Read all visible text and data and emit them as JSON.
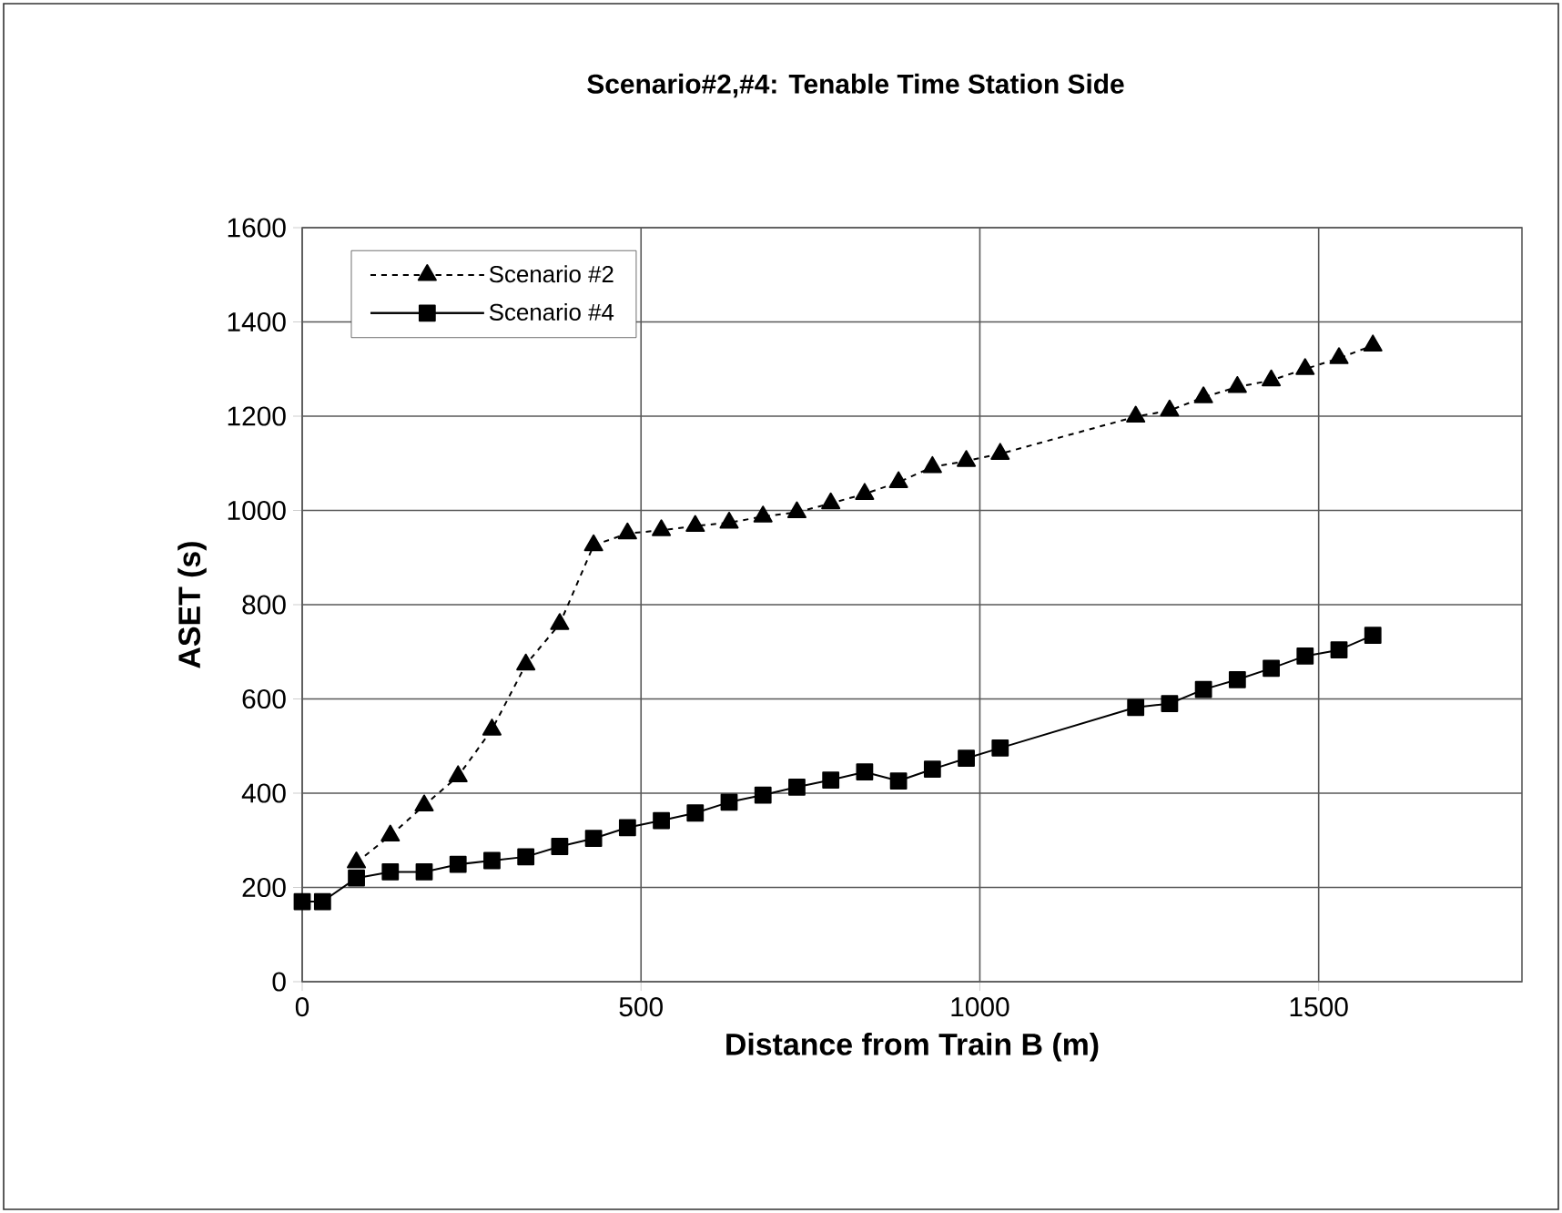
{
  "chart_data": {
    "type": "line",
    "title": "Scenario#2,#4: Tenable Time Station Side",
    "xlabel": "Distance from Train B (m)",
    "ylabel": "ASET (s)",
    "x": [
      0,
      30,
      80,
      130,
      180,
      230,
      280,
      330,
      380,
      430,
      480,
      530,
      580,
      630,
      680,
      730,
      780,
      830,
      880,
      930,
      980,
      1030,
      1230,
      1280,
      1330,
      1380,
      1430,
      1480,
      1530,
      1580
    ],
    "series": [
      {
        "name": "Scenario #2",
        "color": "#000000",
        "marker": "triangle",
        "line_style": "dashed",
        "values": [
          null,
          null,
          253,
          310,
          374,
          436,
          535,
          673,
          759,
          926,
          951,
          958,
          967,
          974,
          987,
          996,
          1015,
          1035,
          1060,
          1092,
          1105,
          1120,
          1199,
          1212,
          1240,
          1262,
          1276,
          1300,
          1323,
          1350
        ]
      },
      {
        "name": "Scenario #4",
        "color": "#000000",
        "marker": "square",
        "line_style": "solid",
        "values": [
          170,
          170,
          220,
          233,
          233,
          249,
          257,
          265,
          287,
          304,
          327,
          342,
          358,
          381,
          396,
          413,
          428,
          445,
          426,
          451,
          474,
          496,
          582,
          590,
          620,
          641,
          665,
          691,
          704,
          735
        ]
      }
    ],
    "xlim": [
      0,
      1800
    ],
    "ylim": [
      0,
      1600
    ],
    "xticks": [
      0,
      500,
      1000,
      1500
    ],
    "yticks": [
      0,
      200,
      400,
      600,
      800,
      1000,
      1200,
      1400,
      1600
    ],
    "grid": true,
    "legend": "top left"
  }
}
